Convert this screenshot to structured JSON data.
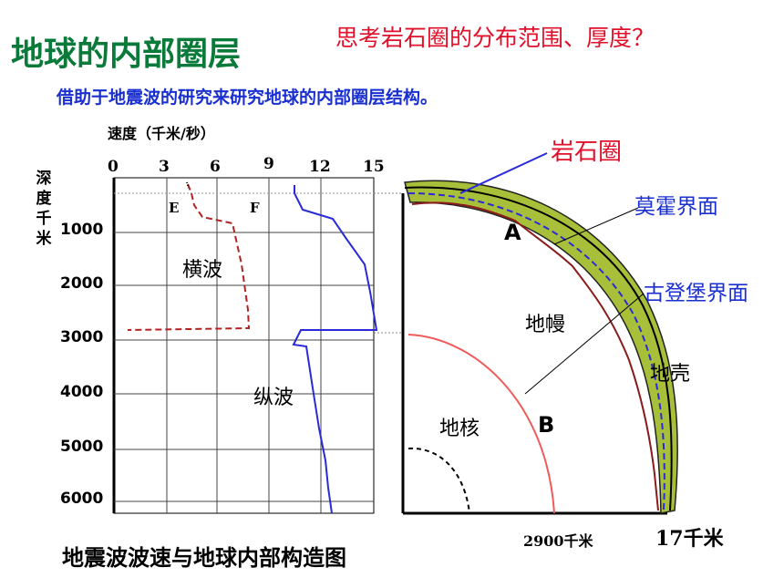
{
  "title": "地球的内部圈层",
  "question": "思考岩石圈的分布范围、厚度？",
  "subtitle": "借助于地震波的研究来研究地球的内部圈层结构。",
  "graph": {
    "speed_axis_label": "速度（千米/秒）",
    "speed_ticks": [
      "0",
      "3",
      "6",
      "9",
      "12",
      "15"
    ],
    "depth_axis_label": "深度千米",
    "depth_ticks": [
      "1000",
      "2000",
      "3000",
      "4000",
      "5000",
      "6000"
    ],
    "point_e": "E",
    "point_f": "F",
    "transverse_wave": "横波",
    "longitudinal_wave": "纵波",
    "colors": {
      "transverse": "#b22222",
      "longitudinal": "#2a2ad8"
    }
  },
  "section": {
    "lithosphere": "岩石圈",
    "moho": "莫霍界面",
    "gutenberg": "古登堡界面",
    "mantle": "地幔",
    "crust": "地壳",
    "core": "地核",
    "label_a": "A",
    "label_b": "B",
    "depth_2900": "2900千米",
    "depth_17": "17千米",
    "colors": {
      "lithosphere_fill": "#a8bf3a",
      "core_boundary": "#f05a5a"
    }
  },
  "caption": "地震波波速与地球内部构造图"
}
